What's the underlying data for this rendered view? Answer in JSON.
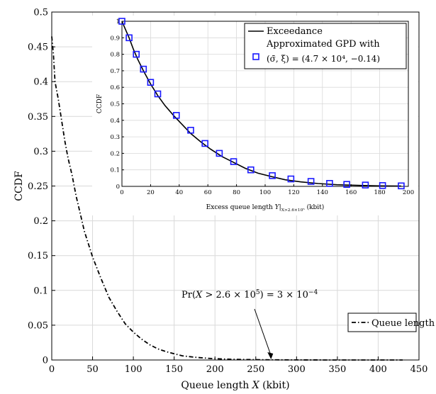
{
  "chart_data": [
    {
      "type": "line",
      "xlabel": "Queue length X (kbit)",
      "ylabel": "CCDF",
      "xlim": [
        0,
        450
      ],
      "ylim": [
        0,
        0.5
      ],
      "xticks": [
        0,
        50,
        100,
        150,
        200,
        250,
        300,
        350,
        400,
        450
      ],
      "yticks": [
        0,
        0.05,
        0.1,
        0.15,
        0.2,
        0.25,
        0.3,
        0.35,
        0.4,
        0.45,
        0.5
      ],
      "grid": true,
      "legend_position": "bottom-right",
      "series": [
        {
          "name": "Queue length",
          "style": "dash-dot",
          "x": [
            0,
            2,
            4,
            8,
            12,
            16,
            20,
            25,
            30,
            35,
            40,
            50,
            60,
            70,
            80,
            90,
            100,
            110,
            120,
            130,
            140,
            150,
            160,
            175,
            190,
            200,
            220,
            240,
            260,
            280,
            300,
            350,
            400,
            430
          ],
          "y": [
            0.465,
            0.44,
            0.4,
            0.375,
            0.345,
            0.315,
            0.29,
            0.265,
            0.235,
            0.21,
            0.185,
            0.148,
            0.118,
            0.09,
            0.07,
            0.052,
            0.04,
            0.03,
            0.022,
            0.016,
            0.012,
            0.009,
            0.006,
            0.004,
            0.0025,
            0.0018,
            0.001,
            0.0006,
            0.0003,
            0.0002,
            0.0001,
            0.0,
            0.0,
            0.0
          ]
        }
      ],
      "annotation": {
        "text": "Pr(X > 2.6 × 10⁵) = 3 × 10⁻⁴",
        "arrow_to": [
          260,
          0
        ]
      }
    },
    {
      "type": "line",
      "xlabel": "Excess queue length Y|X>2.6×10⁵ (kbit)",
      "ylabel": "CCDF",
      "xlim": [
        0,
        200
      ],
      "ylim": [
        0,
        1
      ],
      "xticks": [
        0,
        20,
        40,
        60,
        80,
        100,
        120,
        140,
        160,
        180,
        200
      ],
      "yticks": [
        0,
        0.1,
        0.2,
        0.3,
        0.4,
        0.5,
        0.6,
        0.7,
        0.8,
        0.9,
        1
      ],
      "grid": true,
      "legend_position": "top-right",
      "series": [
        {
          "name": "Exceedance",
          "style": "solid",
          "x": [
            0,
            2,
            5,
            8,
            11,
            15,
            20,
            25,
            30,
            36,
            42,
            48,
            55,
            62,
            70,
            78,
            86,
            95,
            104,
            114,
            125,
            137,
            150,
            165,
            180,
            195
          ],
          "y": [
            1.0,
            0.96,
            0.9,
            0.83,
            0.77,
            0.7,
            0.62,
            0.55,
            0.49,
            0.43,
            0.375,
            0.32,
            0.27,
            0.225,
            0.18,
            0.145,
            0.11,
            0.08,
            0.06,
            0.04,
            0.027,
            0.017,
            0.01,
            0.006,
            0.003,
            0.002
          ]
        },
        {
          "name": "Approximated GPD with",
          "name_line2": "(σ̄, ξ) = (4.7 × 10⁴, −0.14)",
          "style": "markers",
          "x": [
            0,
            5,
            10,
            15,
            20,
            25,
            38,
            48,
            58,
            68,
            78,
            90,
            105,
            118,
            132,
            145,
            157,
            170,
            182,
            195
          ],
          "y": [
            1.0,
            0.9,
            0.8,
            0.71,
            0.63,
            0.56,
            0.43,
            0.34,
            0.26,
            0.2,
            0.15,
            0.1,
            0.065,
            0.045,
            0.03,
            0.018,
            0.012,
            0.008,
            0.005,
            0.003
          ]
        }
      ]
    }
  ],
  "colors": {
    "marker": "#1a1aff",
    "line": "#000000",
    "grid": "#d9d9d9"
  }
}
